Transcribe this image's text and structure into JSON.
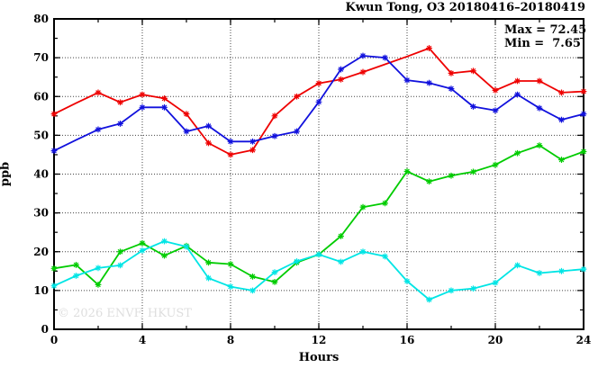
{
  "figure": {
    "title": "Kwun Tong, O3 20180416–20180419",
    "watermark": "© 2026 ENVF, HKUST",
    "annotations": {
      "max_label": "Max = 72.45",
      "min_label": "Min =  7.65"
    }
  },
  "chart_data": {
    "type": "line",
    "title": "Kwun Tong, O3 20180416–20180419",
    "xlabel": "Hours",
    "ylabel": "ppb",
    "xlim": [
      0,
      24
    ],
    "ylim": [
      0,
      80
    ],
    "x_major_ticks": [
      0,
      4,
      8,
      12,
      16,
      20,
      24
    ],
    "x_minor_step": 2,
    "y_major_ticks": [
      0,
      10,
      20,
      30,
      40,
      50,
      60,
      70,
      80
    ],
    "y_minor_step": 5,
    "grid": "dotted lines at major ticks, full box border with inward ticks on all sides",
    "legend_position": "none",
    "x": [
      0,
      1,
      2,
      3,
      4,
      5,
      6,
      7,
      8,
      9,
      10,
      11,
      12,
      13,
      14,
      15,
      16,
      17,
      18,
      19,
      20,
      21,
      22,
      23,
      24
    ],
    "series": [
      {
        "name": "red",
        "color": "#ee0000",
        "values": [
          55.5,
          58.3,
          61.0,
          58.5,
          60.5,
          59.5,
          55.5,
          48.0,
          45.0,
          46.2,
          55.0,
          60.0,
          63.4,
          64.4,
          66.3,
          68.3,
          70.3,
          72.45,
          66.0,
          66.6,
          61.6,
          64.0,
          64.0,
          61.0,
          61.3
        ],
        "no_marker_hours": [
          1,
          15,
          16
        ]
      },
      {
        "name": "blue",
        "color": "#1111dd",
        "values": [
          46.0,
          48.8,
          51.5,
          53.0,
          57.2,
          57.2,
          51.0,
          52.4,
          48.4,
          48.4,
          49.8,
          51.0,
          58.6,
          67.0,
          70.5,
          70.0,
          64.2,
          63.5,
          62.0,
          57.4,
          56.4,
          60.5,
          57.0,
          54.0,
          55.5
        ],
        "no_marker_hours": [
          1
        ]
      },
      {
        "name": "green",
        "color": "#00cc00",
        "values": [
          15.7,
          16.6,
          11.5,
          20.0,
          22.2,
          19.0,
          21.5,
          17.2,
          16.8,
          13.6,
          12.2,
          17.2,
          19.3,
          24.0,
          31.5,
          32.5,
          40.7,
          38.1,
          39.6,
          40.6,
          42.4,
          45.4,
          47.4,
          43.7,
          45.8
        ],
        "no_marker_hours": []
      },
      {
        "name": "cyan",
        "color": "#00e5e5",
        "values": [
          11.2,
          13.8,
          15.8,
          16.5,
          20.3,
          22.7,
          21.3,
          13.2,
          11.0,
          10.0,
          14.7,
          17.5,
          19.3,
          17.4,
          20.0,
          18.8,
          12.4,
          7.65,
          10.0,
          10.5,
          12.0,
          16.5,
          14.5,
          15.0,
          15.5
        ],
        "no_marker_hours": []
      }
    ],
    "stats": {
      "max": 72.45,
      "min": 7.65
    }
  }
}
